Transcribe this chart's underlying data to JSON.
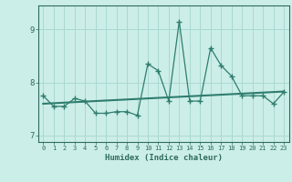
{
  "xlabel": "Humidex (Indice chaleur)",
  "x": [
    0,
    1,
    2,
    3,
    4,
    5,
    6,
    7,
    8,
    9,
    10,
    11,
    12,
    13,
    14,
    15,
    16,
    17,
    18,
    19,
    20,
    21,
    22,
    23
  ],
  "y": [
    7.75,
    7.55,
    7.55,
    7.7,
    7.65,
    7.42,
    7.42,
    7.45,
    7.45,
    7.38,
    8.35,
    8.22,
    7.65,
    9.15,
    7.65,
    7.65,
    8.65,
    8.32,
    8.12,
    7.75,
    7.75,
    7.75,
    7.6,
    7.82
  ],
  "trend_x": [
    0,
    23
  ],
  "trend_y": [
    7.6,
    7.83
  ],
  "line_color": "#2e7d6e",
  "background_color": "#cceee8",
  "grid_color": "#aad8d2",
  "text_color": "#2e6b5e",
  "ylim": [
    6.88,
    9.45
  ],
  "xlim": [
    -0.5,
    23.5
  ]
}
